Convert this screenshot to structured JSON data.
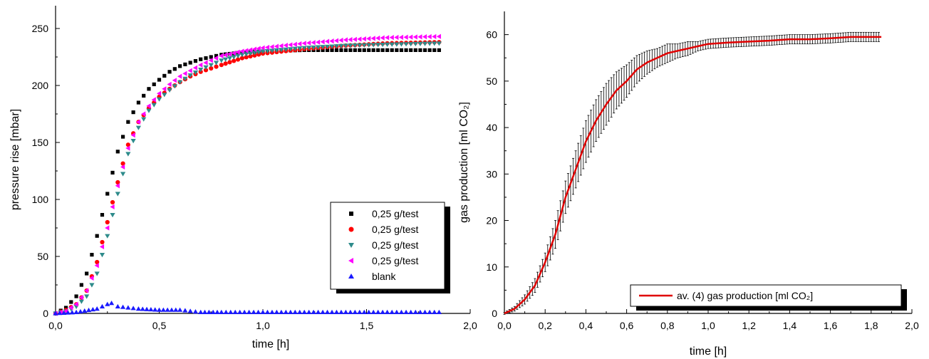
{
  "chart_data": [
    {
      "type": "scatter",
      "xlabel": "time [h]",
      "ylabel": "pressure rise [mbar]",
      "xlim": [
        0,
        2
      ],
      "ylim": [
        0,
        275
      ],
      "xticks": [
        "0,0",
        "0,5",
        "1,0",
        "1,5",
        "2,0"
      ],
      "yticks": [
        "0",
        "50",
        "100",
        "150",
        "200",
        "250"
      ],
      "legend_position": "bottom-right",
      "series": [
        {
          "name": "0,25 g/test",
          "marker": "square",
          "color": "#000000",
          "x": [
            0.0,
            0.05,
            0.1,
            0.15,
            0.2,
            0.25,
            0.3,
            0.35,
            0.4,
            0.45,
            0.5,
            0.55,
            0.6,
            0.65,
            0.7,
            0.75,
            0.8,
            0.9,
            1.0,
            1.2,
            1.4,
            1.6,
            1.85
          ],
          "y": [
            0,
            5,
            15,
            35,
            68,
            105,
            142,
            168,
            185,
            197,
            205,
            212,
            217,
            220,
            223,
            225,
            227,
            229,
            230,
            231,
            231,
            231,
            231
          ]
        },
        {
          "name": "0,25 g/test",
          "marker": "circle",
          "color": "#ff0000",
          "x": [
            0.0,
            0.05,
            0.1,
            0.15,
            0.2,
            0.25,
            0.3,
            0.35,
            0.4,
            0.45,
            0.5,
            0.55,
            0.6,
            0.65,
            0.7,
            0.75,
            0.8,
            0.9,
            1.0,
            1.2,
            1.4,
            1.6,
            1.85
          ],
          "y": [
            0,
            3,
            8,
            20,
            45,
            80,
            115,
            148,
            168,
            180,
            190,
            197,
            203,
            208,
            212,
            215,
            218,
            224,
            228,
            232,
            235,
            237,
            238
          ]
        },
        {
          "name": "0,25 g/test",
          "marker": "triangle-down",
          "color": "#2e8b8b",
          "x": [
            0.0,
            0.05,
            0.1,
            0.15,
            0.2,
            0.25,
            0.3,
            0.35,
            0.4,
            0.45,
            0.5,
            0.55,
            0.6,
            0.65,
            0.7,
            0.75,
            0.8,
            0.9,
            1.0,
            1.2,
            1.4,
            1.6,
            1.85
          ],
          "y": [
            0,
            2,
            6,
            15,
            35,
            68,
            105,
            140,
            163,
            178,
            188,
            196,
            203,
            209,
            214,
            218,
            222,
            227,
            230,
            233,
            235,
            236,
            237
          ]
        },
        {
          "name": "0,25 g/test",
          "marker": "triangle-left",
          "color": "#ff00ff",
          "x": [
            0.0,
            0.05,
            0.1,
            0.15,
            0.2,
            0.25,
            0.3,
            0.35,
            0.4,
            0.45,
            0.5,
            0.55,
            0.6,
            0.65,
            0.7,
            0.75,
            0.8,
            0.9,
            1.0,
            1.2,
            1.4,
            1.6,
            1.85
          ],
          "y": [
            0,
            2,
            8,
            20,
            42,
            75,
            112,
            145,
            168,
            182,
            193,
            201,
            208,
            213,
            218,
            222,
            226,
            230,
            233,
            237,
            240,
            242,
            243
          ]
        },
        {
          "name": "blank",
          "marker": "triangle-up",
          "color": "#1a1aff",
          "x": [
            0.0,
            0.1,
            0.2,
            0.25,
            0.27,
            0.3,
            0.35,
            0.4,
            0.5,
            0.6,
            0.65,
            0.7,
            0.8,
            1.0,
            1.2,
            1.4,
            1.6,
            1.85
          ],
          "y": [
            0,
            1,
            4,
            8,
            9,
            6,
            5,
            4,
            3,
            3,
            2,
            1,
            1,
            1,
            1,
            1,
            1,
            1
          ]
        }
      ]
    },
    {
      "type": "line",
      "xlabel": "time [h]",
      "ylabel": "gas production [ml CO₂]",
      "xlim": [
        0,
        2
      ],
      "ylim": [
        0,
        65
      ],
      "xticks": [
        "0,0",
        "0,2",
        "0,4",
        "0,6",
        "0,8",
        "1,0",
        "1,2",
        "1,4",
        "1,6",
        "1,8",
        "2,0"
      ],
      "yticks": [
        "0",
        "10",
        "20",
        "30",
        "40",
        "50",
        "60"
      ],
      "legend_position": "bottom-right",
      "series": [
        {
          "name": "av.  (4) gas production [ml CO₂]",
          "color": "#e00000",
          "error_bars": true,
          "x": [
            0.0,
            0.05,
            0.1,
            0.15,
            0.2,
            0.25,
            0.3,
            0.35,
            0.4,
            0.45,
            0.5,
            0.55,
            0.6,
            0.65,
            0.7,
            0.75,
            0.8,
            0.85,
            0.9,
            0.95,
            1.0,
            1.1,
            1.2,
            1.3,
            1.4,
            1.5,
            1.6,
            1.7,
            1.85
          ],
          "y": [
            0,
            1,
            3,
            6,
            11,
            17,
            25,
            31,
            37,
            41.5,
            45,
            48,
            50,
            52.5,
            54,
            55,
            56,
            56.5,
            57,
            57.5,
            58,
            58.3,
            58.5,
            58.7,
            59,
            59,
            59.2,
            59.5,
            59.5
          ],
          "err": [
            0.2,
            0.5,
            1,
            1.5,
            2,
            3,
            3.5,
            4,
            4.5,
            4.5,
            4.5,
            4,
            3.5,
            3,
            2.5,
            2,
            2,
            1.5,
            1.5,
            1,
            1,
            1,
            1,
            1,
            1,
            1,
            1,
            1,
            1
          ]
        }
      ]
    }
  ]
}
